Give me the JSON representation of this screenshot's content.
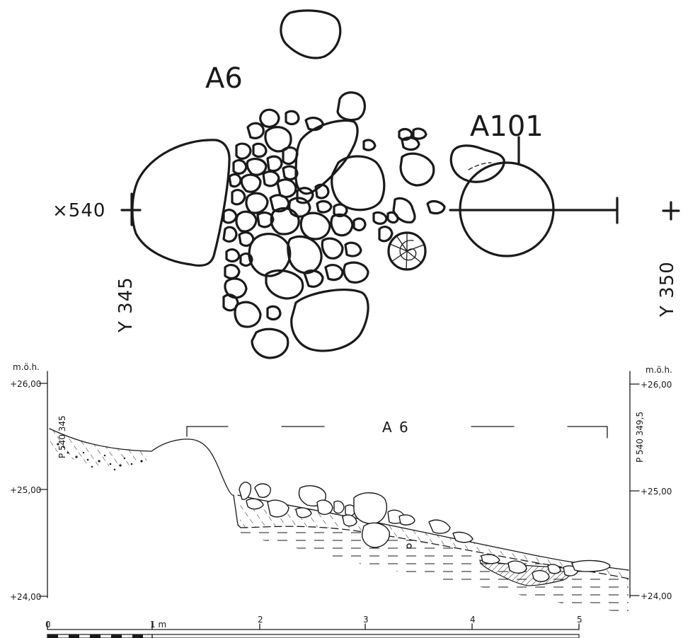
{
  "plan": {
    "feature_a6": "A6",
    "feature_a101": "A101",
    "coord_x540": "×540",
    "coord_y345": "Y 345",
    "coord_y350": "Y 350"
  },
  "section": {
    "unit_left": "m.ö.h.",
    "unit_right": "m.ö.h.",
    "levels_left": [
      "+26,00",
      "+25,00",
      "+24,00"
    ],
    "levels_right": [
      "+26,00",
      "+25,00",
      "+24,00"
    ],
    "point_left": "P 540 345",
    "point_right": "P 540 349,5",
    "feature_label": "A 6"
  },
  "scale_bar": {
    "ticks": [
      "0",
      "1 m",
      "2",
      "3",
      "4",
      "5"
    ]
  },
  "colors": {
    "ink": "#1a1a1a",
    "paper": "#ffffff"
  }
}
